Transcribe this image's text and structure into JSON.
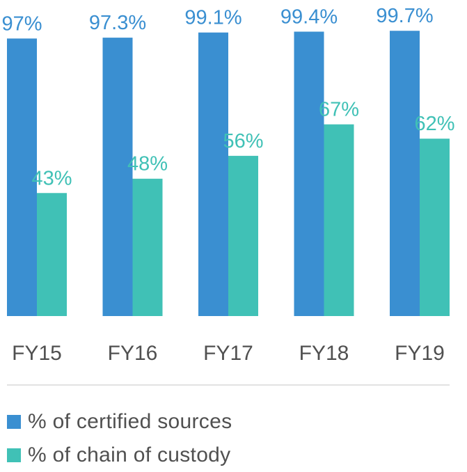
{
  "chart_data": {
    "type": "bar",
    "categories": [
      "FY15",
      "FY16",
      "FY17",
      "FY18",
      "FY19"
    ],
    "series": [
      {
        "name": "% of certified sources",
        "values": [
          97,
          97.3,
          99.1,
          99.4,
          99.7
        ],
        "labels": [
          "97%",
          "97.3%",
          "99.1%",
          "99.4%",
          "99.7%"
        ],
        "color": "#3a8fd1"
      },
      {
        "name": "% of chain of custody",
        "values": [
          43,
          48,
          56,
          67,
          62
        ],
        "labels": [
          "43%",
          "48%",
          "56%",
          "67%",
          "62%"
        ],
        "color": "#40c1b6"
      }
    ],
    "ylim": [
      0,
      100
    ],
    "grid": false,
    "legend": "bottom-left"
  }
}
